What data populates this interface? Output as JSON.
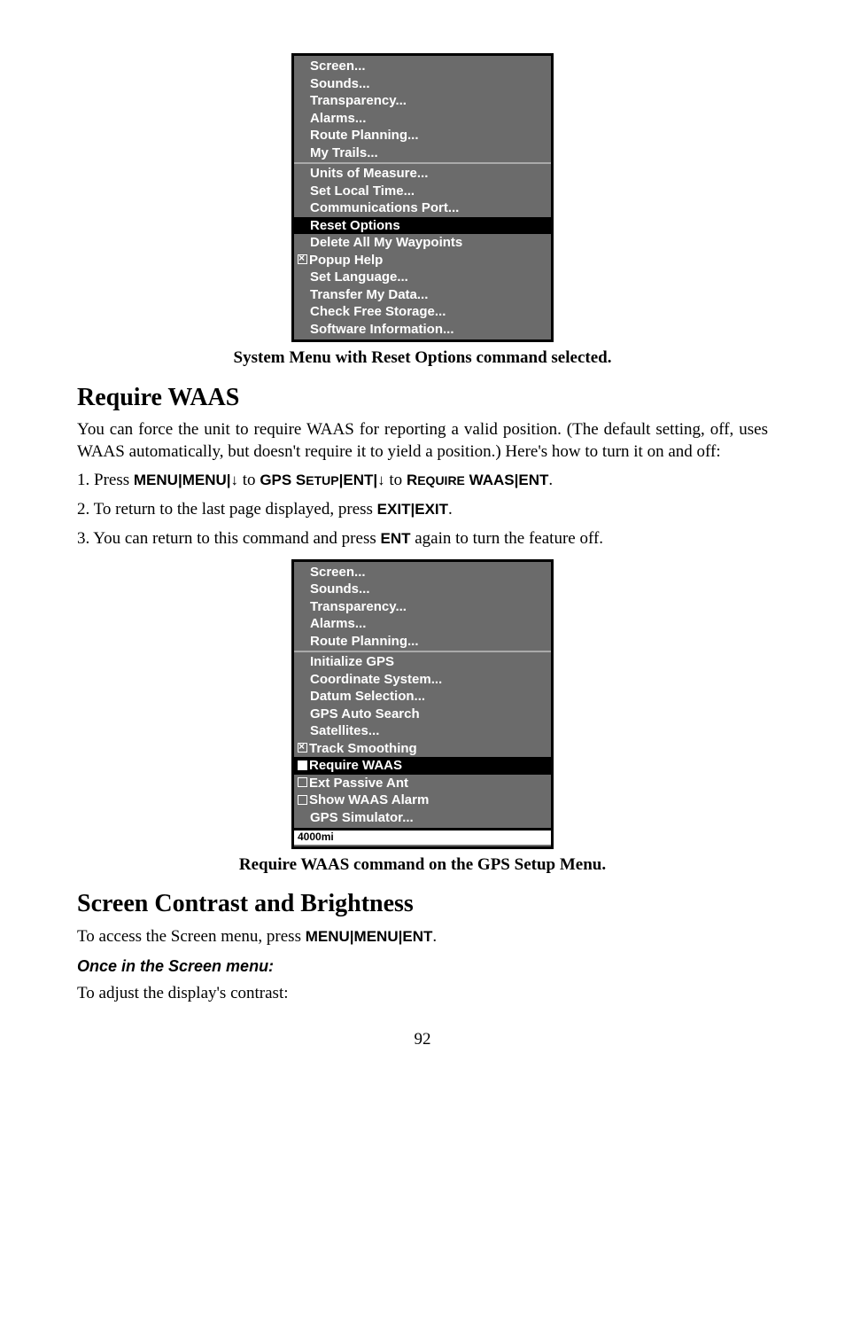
{
  "screenshot1": {
    "items_top": [
      "Screen...",
      "Sounds...",
      "Transparency...",
      "Alarms...",
      "Route Planning...",
      "My Trails..."
    ],
    "items_mid": [
      "Units of Measure...",
      "Set Local Time...",
      "Communications Port..."
    ],
    "selected": "Reset Options",
    "items_after_sel": [
      "Delete All My Waypoints"
    ],
    "check_item": "Popup Help",
    "items_bottom": [
      "Set Language...",
      "Transfer My Data...",
      "Check Free Storage...",
      "Software Information..."
    ]
  },
  "caption1": "System Menu with Reset Options command selected.",
  "h2a": "Require WAAS",
  "p1": "You can force the unit to require WAAS for reporting a valid position. (The default setting, off, uses WAAS automatically, but doesn't require it to yield a position.) Here's how to turn it on and off:",
  "step1_a": "1. Press ",
  "step1_menu": "MENU",
  "step1_pipe": "|",
  "step1_to": " to ",
  "step1_gps": "GPS S",
  "step1_etup": "ETUP",
  "step1_ent": "ENT",
  "step1_req": "R",
  "step1_equire": "EQUIRE",
  "step1_waas": " WAAS",
  "step1_period": ".",
  "step2_a": "2. To return to the last page displayed, press ",
  "step2_exit": "EXIT",
  "step3": "3. You can return to this command and press ",
  "step3_ent": "ENT",
  "step3_b": " again to turn the feature off.",
  "screenshot2": {
    "items_top": [
      "Screen...",
      "Sounds...",
      "Transparency...",
      "Alarms...",
      "Route Planning..."
    ],
    "items_mid": [
      "Initialize GPS",
      "Coordinate System...",
      "Datum Selection...",
      "GPS Auto Search",
      "Satellites..."
    ],
    "check1": "Track Smoothing",
    "selected": "Require WAAS",
    "check2": "Ext Passive Ant",
    "check3": "Show WAAS Alarm",
    "item_last": "GPS Simulator...",
    "footer": "4000mi"
  },
  "caption2": "Require WAAS command on the GPS Setup Menu.",
  "h2b": "Screen Contrast and Brightness",
  "p2a": "To access the Screen menu, press ",
  "p2_menu": "MENU",
  "p2_ent": "ENT",
  "subhead": "Once in the Screen menu:",
  "p3": "To adjust the display's contrast:",
  "pagenum": "92"
}
